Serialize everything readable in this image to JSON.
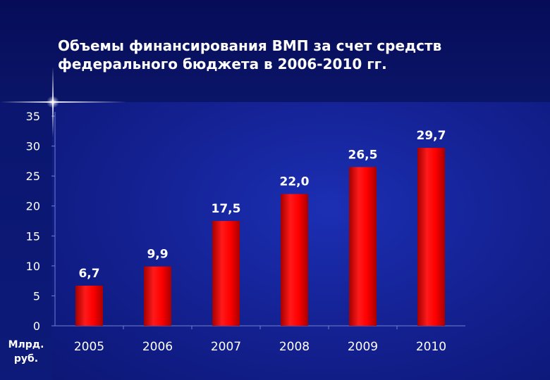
{
  "title": "Объемы финансирования ВМП за счет средств\nфедерального бюджета в 2006-2010 гг.",
  "unit_label": "Млрд.\nруб.",
  "colors": {
    "bar": "#ff0000",
    "bar_shade": "#b00000",
    "text": "#ffffff"
  },
  "chart_data": {
    "type": "bar",
    "title": "Объемы финансирования ВМП за счет средств федерального бюджета в 2006-2010 гг.",
    "xlabel": "",
    "ylabel": "Млрд. руб.",
    "categories": [
      "2005",
      "2006",
      "2007",
      "2008",
      "2009",
      "2010"
    ],
    "values": [
      6.7,
      9.9,
      17.5,
      22.0,
      26.5,
      29.7
    ],
    "value_labels": [
      "6,7",
      "9,9",
      "17,5",
      "22,0",
      "26,5",
      "29,7"
    ],
    "ylim": [
      0,
      35
    ],
    "yticks": [
      0,
      5,
      10,
      15,
      20,
      25,
      30,
      35
    ],
    "grid": false,
    "legend": "none"
  }
}
